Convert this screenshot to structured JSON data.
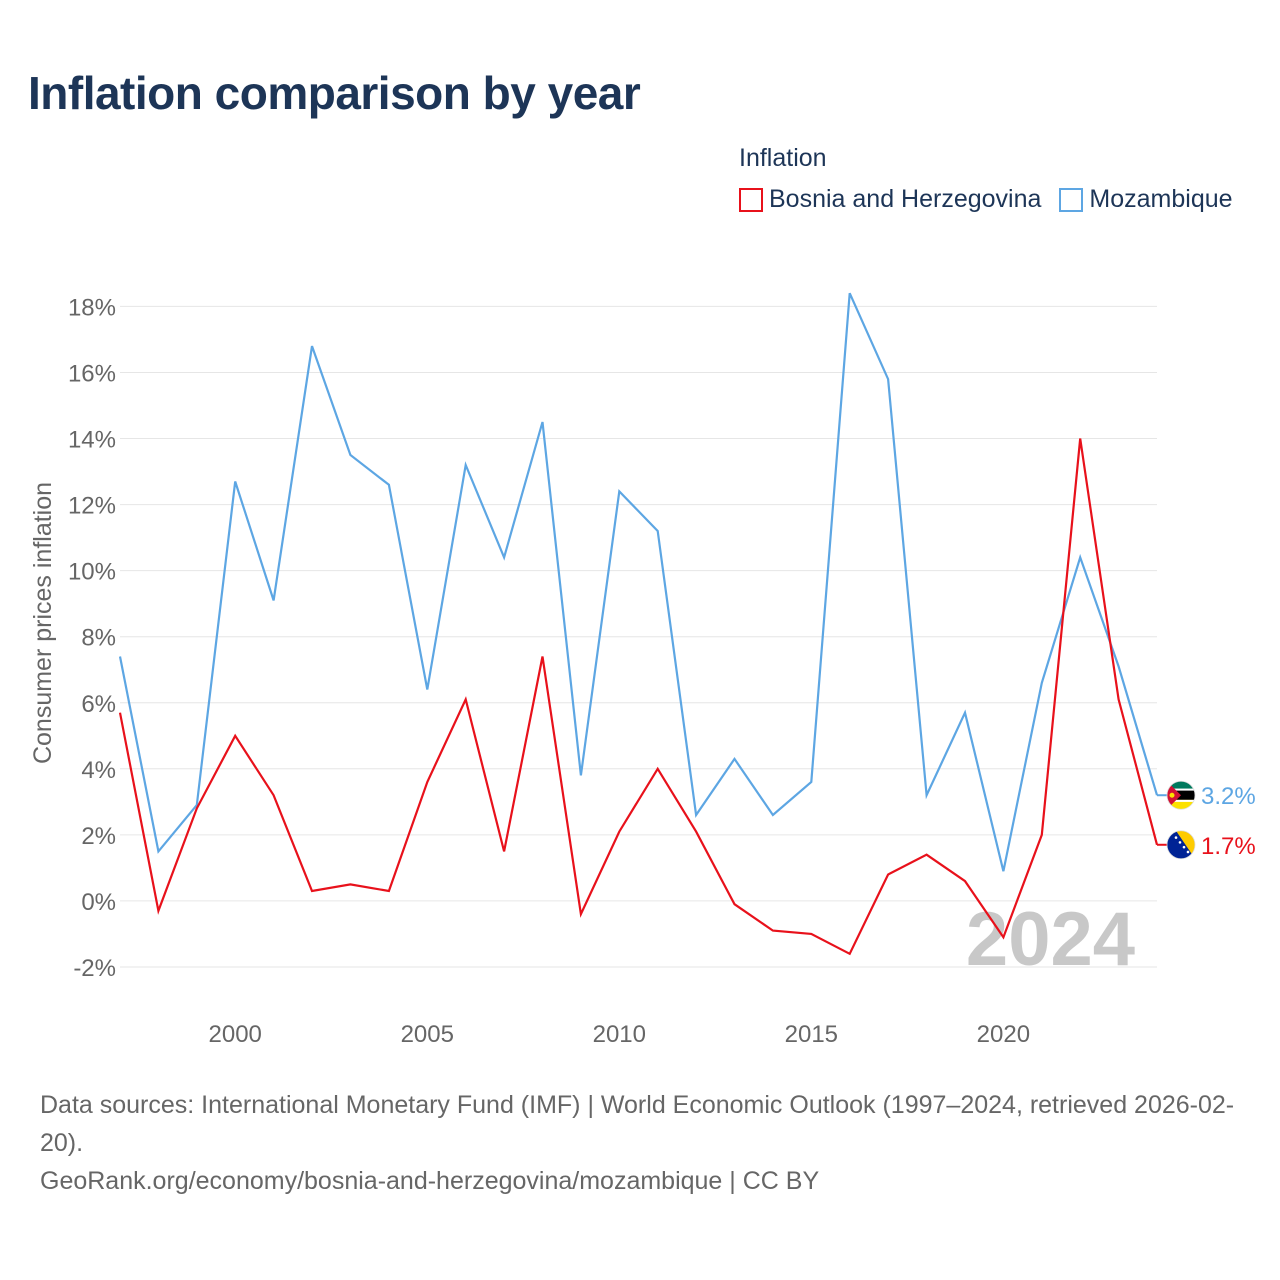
{
  "title": "Inflation comparison by year",
  "legend": {
    "title": "Inflation",
    "items": [
      {
        "label": "Bosnia and Herzegovina",
        "color": "#e8111b"
      },
      {
        "label": "Mozambique",
        "color": "#5da6e3"
      }
    ]
  },
  "chart_data": {
    "type": "line",
    "title": "Inflation comparison by year",
    "xlabel": "",
    "ylabel": "Consumer prices inflation",
    "x": [
      1997,
      1998,
      1999,
      2000,
      2001,
      2002,
      2003,
      2004,
      2005,
      2006,
      2007,
      2008,
      2009,
      2010,
      2011,
      2012,
      2013,
      2014,
      2015,
      2016,
      2017,
      2018,
      2019,
      2020,
      2021,
      2022,
      2023,
      2024
    ],
    "xlim": [
      1997,
      2024
    ],
    "ylim": [
      -3,
      18.8
    ],
    "y_ticks": [
      -2,
      0,
      2,
      4,
      6,
      8,
      10,
      12,
      14,
      16,
      18
    ],
    "y_tick_labels": [
      "-2%",
      "0%",
      "2%",
      "4%",
      "6%",
      "8%",
      "10%",
      "12%",
      "14%",
      "16%",
      "18%"
    ],
    "x_ticks": [
      2000,
      2005,
      2010,
      2015,
      2020
    ],
    "x_tick_labels": [
      "2000",
      "2005",
      "2010",
      "2015",
      "2020"
    ],
    "grid": true,
    "watermark_year": "2024",
    "series": [
      {
        "name": "Mozambique",
        "color": "#5da6e3",
        "end_label": "3.2%",
        "flag": "mozambique-flag",
        "values": [
          7.4,
          1.5,
          2.9,
          12.7,
          9.1,
          16.8,
          13.5,
          12.6,
          6.4,
          13.2,
          10.4,
          14.5,
          3.8,
          12.4,
          11.2,
          2.6,
          4.3,
          2.6,
          3.6,
          18.4,
          15.8,
          3.2,
          5.7,
          0.9,
          6.6,
          10.4,
          7.1,
          3.2
        ]
      },
      {
        "name": "Bosnia and Herzegovina",
        "color": "#e8111b",
        "end_label": "1.7%",
        "flag": "bosnia-flag",
        "values": [
          5.7,
          -0.3,
          2.8,
          5.0,
          3.2,
          0.3,
          0.5,
          0.3,
          3.6,
          6.1,
          1.5,
          7.4,
          -0.4,
          2.1,
          4.0,
          2.1,
          -0.1,
          -0.9,
          -1.0,
          -1.6,
          0.8,
          1.4,
          0.6,
          -1.1,
          2.0,
          14.0,
          6.1,
          1.7
        ]
      }
    ]
  },
  "footer": {
    "sources": "Data sources: International Monetary Fund (IMF) | World Economic Outlook (1997–2024, retrieved 2026-02-20).",
    "attribution": "GeoRank.org/economy/bosnia-and-herzegovina/mozambique | CC BY"
  }
}
